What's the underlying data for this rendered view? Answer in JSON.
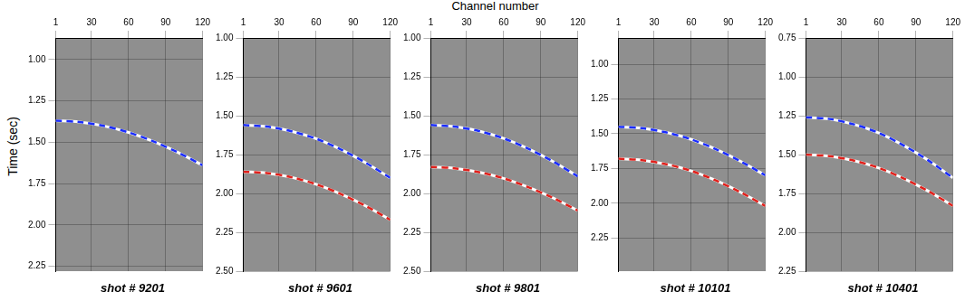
{
  "x_label": "Channel number",
  "y_label": "Time (sec)",
  "chart_data": [
    {
      "type": "line",
      "title": "shot # 9201",
      "grid": true,
      "x": [
        1,
        20,
        40,
        60,
        80,
        100,
        120
      ],
      "xlim": [
        1,
        120
      ],
      "xticks": [
        1,
        30,
        60,
        90,
        120
      ],
      "ylim": [
        0.87,
        2.28
      ],
      "yticks": [
        {
          "value": 1,
          "label": "1.00"
        },
        {
          "value": 1.25,
          "label": "1.25"
        },
        {
          "value": 1.5,
          "label": "1.50"
        },
        {
          "value": 1.75,
          "label": "1.75"
        },
        {
          "value": 2,
          "label": "2.00"
        },
        {
          "value": 2.25,
          "label": "2.25"
        }
      ],
      "series": [
        {
          "color": "#1a2cff",
          "line_style": "dashed",
          "values": [
            1.37,
            1.378,
            1.402,
            1.441,
            1.495,
            1.562,
            1.64
          ]
        }
      ]
    },
    {
      "type": "line",
      "title": "shot # 9601",
      "grid": true,
      "x": [
        1,
        20,
        40,
        60,
        80,
        100,
        120
      ],
      "xlim": [
        1,
        120
      ],
      "xticks": [
        1,
        30,
        60,
        90,
        120
      ],
      "ylim": [
        1.0,
        2.5
      ],
      "yticks": [
        {
          "value": 1,
          "label": "1.00"
        },
        {
          "value": 1.25,
          "label": "1.25"
        },
        {
          "value": 1.5,
          "label": "1.50"
        },
        {
          "value": 1.75,
          "label": "1.75"
        },
        {
          "value": 2,
          "label": "2.00"
        },
        {
          "value": 2.25,
          "label": "2.25"
        },
        {
          "value": 2.5,
          "label": "2.50"
        }
      ],
      "series": [
        {
          "color": "#1a2cff",
          "line_style": "dashed",
          "values": [
            1.56,
            1.57,
            1.6,
            1.648,
            1.717,
            1.802,
            1.9
          ]
        },
        {
          "color": "#e0201b",
          "line_style": "dashed",
          "values": [
            1.86,
            1.869,
            1.896,
            1.941,
            2.004,
            2.08,
            2.17
          ]
        }
      ]
    },
    {
      "type": "line",
      "title": "shot # 9801",
      "grid": true,
      "x": [
        1,
        20,
        40,
        60,
        80,
        100,
        120
      ],
      "xlim": [
        1,
        120
      ],
      "xticks": [
        1,
        30,
        60,
        90,
        120
      ],
      "ylim": [
        1.0,
        2.5
      ],
      "yticks": [
        {
          "value": 1,
          "label": "1.00"
        },
        {
          "value": 1.25,
          "label": "1.25"
        },
        {
          "value": 1.5,
          "label": "1.50"
        },
        {
          "value": 1.75,
          "label": "1.75"
        },
        {
          "value": 2,
          "label": "2.00"
        },
        {
          "value": 2.25,
          "label": "2.25"
        },
        {
          "value": 2.5,
          "label": "2.50"
        }
      ],
      "series": [
        {
          "color": "#1a2cff",
          "line_style": "dashed",
          "values": [
            1.56,
            1.57,
            1.599,
            1.646,
            1.713,
            1.795,
            1.89
          ]
        },
        {
          "color": "#e0201b",
          "line_style": "dashed",
          "values": [
            1.83,
            1.838,
            1.863,
            1.903,
            1.96,
            2.029,
            2.11
          ]
        }
      ]
    },
    {
      "type": "line",
      "title": "shot # 10101",
      "grid": true,
      "x": [
        1,
        20,
        40,
        60,
        80,
        100,
        120
      ],
      "xlim": [
        1,
        120
      ],
      "xticks": [
        1,
        30,
        60,
        90,
        120
      ],
      "ylim": [
        0.81,
        2.49
      ],
      "yticks": [
        {
          "value": 1,
          "label": "1.00"
        },
        {
          "value": 1.25,
          "label": "1.25"
        },
        {
          "value": 1.5,
          "label": "1.50"
        },
        {
          "value": 1.75,
          "label": "1.75"
        },
        {
          "value": 2,
          "label": "2.00"
        },
        {
          "value": 2.25,
          "label": "2.25"
        }
      ],
      "series": [
        {
          "color": "#1a2cff",
          "line_style": "dashed",
          "values": [
            1.45,
            1.46,
            1.491,
            1.541,
            1.612,
            1.699,
            1.8
          ]
        },
        {
          "color": "#e0201b",
          "line_style": "dashed",
          "values": [
            1.68,
            1.69,
            1.72,
            1.768,
            1.837,
            1.922,
            2.02
          ]
        }
      ]
    },
    {
      "type": "line",
      "title": "shot # 10401",
      "grid": true,
      "x": [
        1,
        20,
        40,
        60,
        80,
        100,
        120
      ],
      "xlim": [
        1,
        120
      ],
      "xticks": [
        1,
        30,
        60,
        90,
        120
      ],
      "ylim": [
        0.75,
        2.25
      ],
      "yticks": [
        {
          "value": 0.75,
          "label": "0.75"
        },
        {
          "value": 1,
          "label": "1.00"
        },
        {
          "value": 1.25,
          "label": "1.25"
        },
        {
          "value": 1.5,
          "label": "1.50"
        },
        {
          "value": 1.75,
          "label": "1.75"
        },
        {
          "value": 2,
          "label": "2.00"
        },
        {
          "value": 2.25,
          "label": "2.25"
        }
      ],
      "series": [
        {
          "color": "#1a2cff",
          "line_style": "dashed",
          "values": [
            1.26,
            1.271,
            1.306,
            1.361,
            1.441,
            1.537,
            1.65
          ]
        },
        {
          "color": "#e0201b",
          "line_style": "dashed",
          "values": [
            1.5,
            1.51,
            1.539,
            1.586,
            1.653,
            1.735,
            1.83
          ]
        }
      ]
    }
  ]
}
